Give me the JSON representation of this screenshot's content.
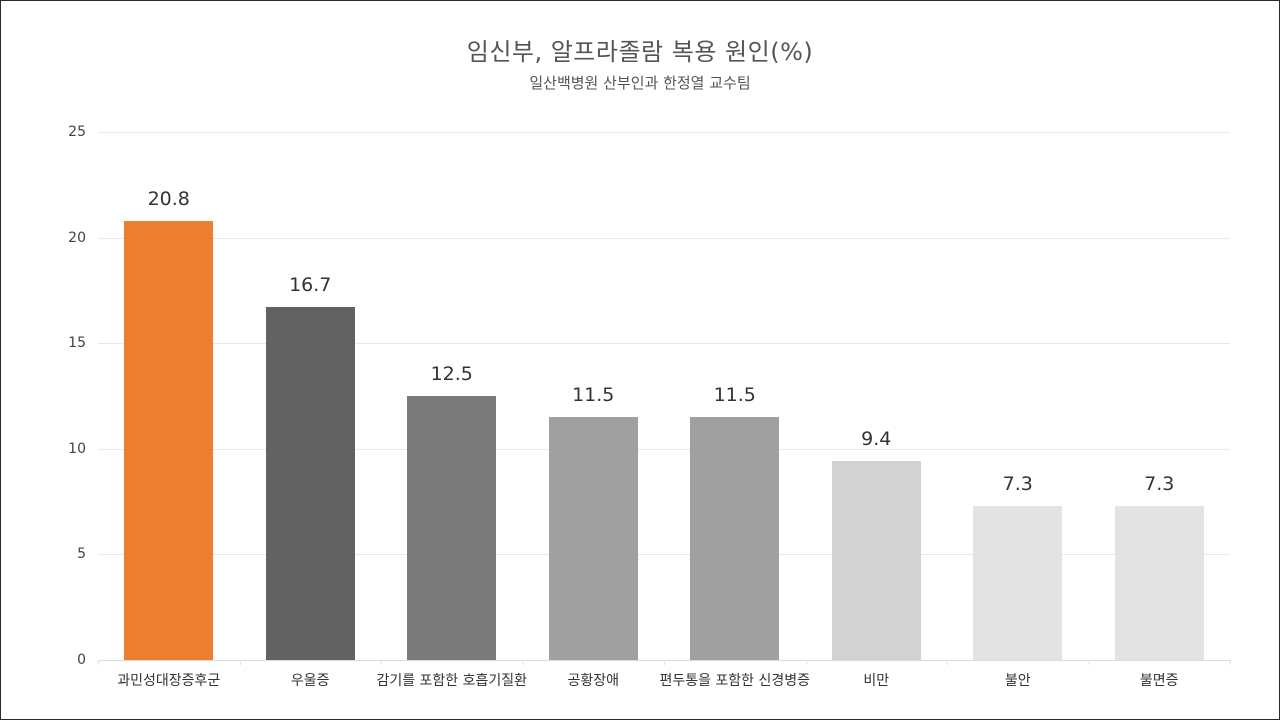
{
  "chart_data": {
    "type": "bar",
    "title": "임신부, 알프라졸람 복용 원인(%)",
    "subtitle": "일산백병원 산부인과 한정열 교수팀",
    "xlabel": "",
    "ylabel": "",
    "ylim": [
      0,
      25
    ],
    "yticks": [
      "0",
      "5",
      "10",
      "15",
      "20",
      "25"
    ],
    "grid": true,
    "legend": "none",
    "categories": [
      "과민성대장증후군",
      "우울증",
      "감기를 포함한 호흡기질환",
      "공황장애",
      "편두통을 포함한 신경병증",
      "비만",
      "불안",
      "불면증"
    ],
    "values": [
      20.8,
      16.7,
      12.5,
      11.5,
      11.5,
      9.4,
      7.3,
      7.3
    ],
    "value_labels": [
      "20.8",
      "16.7",
      "12.5",
      "11.5",
      "11.5",
      "9.4",
      "7.3",
      "7.3"
    ],
    "bar_colors": [
      "#ED7D31",
      "#626262",
      "#7A7A7A",
      "#A0A0A0",
      "#A0A0A0",
      "#D2D2D2",
      "#E3E3E3",
      "#E3E3E3"
    ]
  }
}
